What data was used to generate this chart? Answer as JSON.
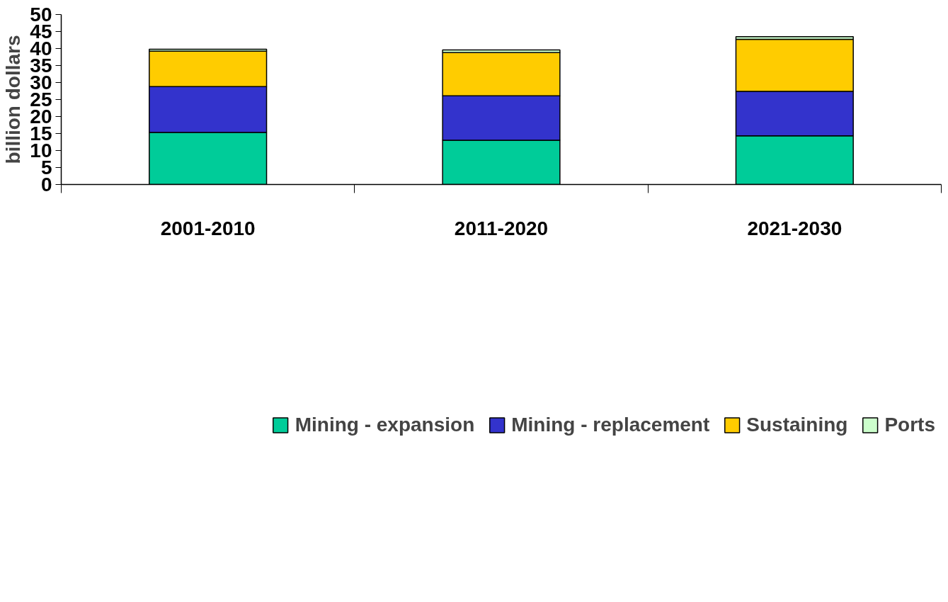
{
  "chart_data": {
    "type": "bar",
    "stacked": true,
    "ylabel": "billion dollars",
    "categories": [
      "2001-2010",
      "2011-2020",
      "2021-2030"
    ],
    "series": [
      {
        "name": "Mining - expansion",
        "color": "#00cc99",
        "values": [
          15.3,
          13.0,
          14.3
        ]
      },
      {
        "name": "Mining - replacement",
        "color": "#3333cc",
        "values": [
          13.5,
          13.1,
          13.1
        ]
      },
      {
        "name": "Sustaining",
        "color": "#ffcc00",
        "values": [
          10.4,
          12.7,
          15.3
        ]
      },
      {
        "name": "Ports",
        "color": "#ccffcc",
        "values": [
          0.6,
          0.8,
          0.8
        ]
      }
    ],
    "ylim": [
      0,
      50
    ],
    "yticks": [
      0,
      5,
      10,
      15,
      20,
      25,
      30,
      35,
      40,
      45,
      50
    ],
    "grid": false,
    "legend": "bottom"
  }
}
